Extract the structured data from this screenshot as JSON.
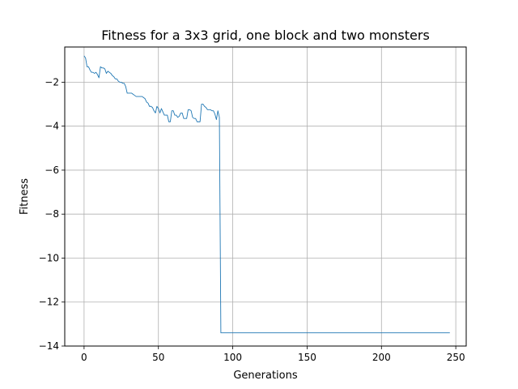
{
  "chart_data": {
    "type": "line",
    "title": "Fitness for a 3x3 grid, one block and two monsters",
    "xlabel": "Generations",
    "ylabel": "Fitness",
    "xlim": [
      -13,
      257
    ],
    "ylim": [
      -14,
      -0.4
    ],
    "grid": true,
    "line_color": "#1f77b4",
    "xticks": [
      0,
      50,
      100,
      150,
      200,
      250
    ],
    "yticks": [
      -14,
      -12,
      -10,
      -8,
      -6,
      -4,
      -2
    ],
    "series": [
      {
        "x": [
          0,
          1,
          2,
          3,
          4,
          5,
          6,
          7,
          8,
          9,
          10,
          11,
          12,
          13,
          14,
          15,
          16,
          17,
          18,
          19,
          20,
          21,
          22,
          23,
          24,
          25,
          26,
          27,
          28,
          29,
          30,
          31,
          32,
          33,
          34,
          35,
          36,
          37,
          38,
          39,
          40,
          41,
          42,
          43,
          44,
          45,
          46,
          47,
          48,
          49,
          50,
          51,
          52,
          53,
          54,
          55,
          56,
          57,
          58,
          59,
          60,
          61,
          62,
          63,
          64,
          65,
          66,
          67,
          68,
          69,
          70,
          71,
          72,
          73,
          74,
          75,
          76,
          77,
          78,
          79,
          80,
          81,
          82,
          83,
          84,
          85,
          86,
          87,
          88,
          89,
          90,
          91,
          92,
          93,
          100,
          150,
          200,
          246
        ],
        "y": [
          -0.8,
          -0.9,
          -1.3,
          -1.3,
          -1.45,
          -1.55,
          -1.55,
          -1.6,
          -1.55,
          -1.65,
          -1.8,
          -1.3,
          -1.35,
          -1.35,
          -1.4,
          -1.6,
          -1.5,
          -1.55,
          -1.6,
          -1.7,
          -1.75,
          -1.85,
          -1.85,
          -1.95,
          -2.0,
          -2.0,
          -2.05,
          -2.05,
          -2.2,
          -2.5,
          -2.5,
          -2.5,
          -2.5,
          -2.55,
          -2.6,
          -2.65,
          -2.65,
          -2.65,
          -2.65,
          -2.65,
          -2.7,
          -2.75,
          -2.9,
          -2.95,
          -3.1,
          -3.1,
          -3.15,
          -3.3,
          -3.4,
          -3.1,
          -3.2,
          -3.4,
          -3.2,
          -3.35,
          -3.5,
          -3.5,
          -3.5,
          -3.8,
          -3.8,
          -3.3,
          -3.3,
          -3.5,
          -3.5,
          -3.6,
          -3.55,
          -3.4,
          -3.4,
          -3.65,
          -3.65,
          -3.65,
          -3.25,
          -3.25,
          -3.3,
          -3.6,
          -3.65,
          -3.65,
          -3.8,
          -3.8,
          -3.8,
          -3.0,
          -3.0,
          -3.1,
          -3.15,
          -3.25,
          -3.25,
          -3.25,
          -3.3,
          -3.3,
          -3.45,
          -3.7,
          -3.3,
          -3.6,
          -13.4,
          -13.4,
          -13.4,
          -13.4,
          -13.4,
          -13.4
        ]
      }
    ]
  }
}
